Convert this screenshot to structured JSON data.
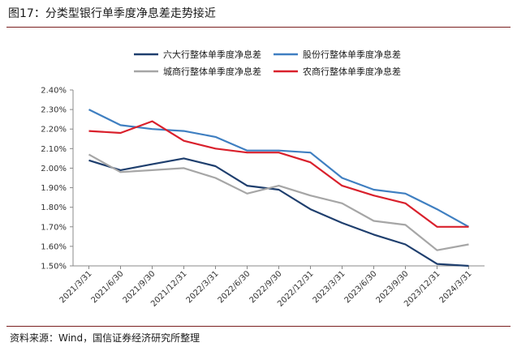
{
  "figure": {
    "title": "图17：分类型银行单季度净息差走势接近",
    "source": "资料来源：Wind，国信证券经济研究所整理"
  },
  "chart_data": {
    "type": "line",
    "title": "",
    "xlabel": "",
    "ylabel": "",
    "categories": [
      "2021/3/31",
      "2021/6/30",
      "2021/9/30",
      "2021/12/31",
      "2022/3/31",
      "2022/6/30",
      "2022/9/30",
      "2022/12/31",
      "2023/3/31",
      "2023/6/30",
      "2023/9/30",
      "2023/12/31",
      "2024/3/31"
    ],
    "y_ticks": [
      "1.50%",
      "1.60%",
      "1.70%",
      "1.80%",
      "1.90%",
      "2.00%",
      "2.10%",
      "2.20%",
      "2.30%",
      "2.40%"
    ],
    "ylim": [
      1.5,
      2.4
    ],
    "grid": false,
    "legend_position": "top",
    "series": [
      {
        "name": "六大行整体单季度净息差",
        "color": "#1f3f6e",
        "values": [
          2.04,
          1.99,
          2.02,
          2.05,
          2.01,
          1.91,
          1.89,
          1.79,
          1.72,
          1.66,
          1.61,
          1.51,
          1.5
        ]
      },
      {
        "name": "股份行整体单季度净息差",
        "color": "#3f7fc1",
        "values": [
          2.3,
          2.22,
          2.2,
          2.19,
          2.16,
          2.09,
          2.09,
          2.08,
          1.95,
          1.89,
          1.87,
          1.79,
          1.7
        ]
      },
      {
        "name": "城商行整体单季度净息差",
        "color": "#a6a6a6",
        "values": [
          2.07,
          1.98,
          1.99,
          2.0,
          1.95,
          1.87,
          1.91,
          1.86,
          1.82,
          1.73,
          1.71,
          1.58,
          1.61
        ]
      },
      {
        "name": "农商行整体单季度净息差",
        "color": "#d9202c",
        "values": [
          2.19,
          2.18,
          2.24,
          2.14,
          2.1,
          2.08,
          2.08,
          2.03,
          1.91,
          1.86,
          1.82,
          1.7,
          1.7
        ]
      }
    ]
  }
}
